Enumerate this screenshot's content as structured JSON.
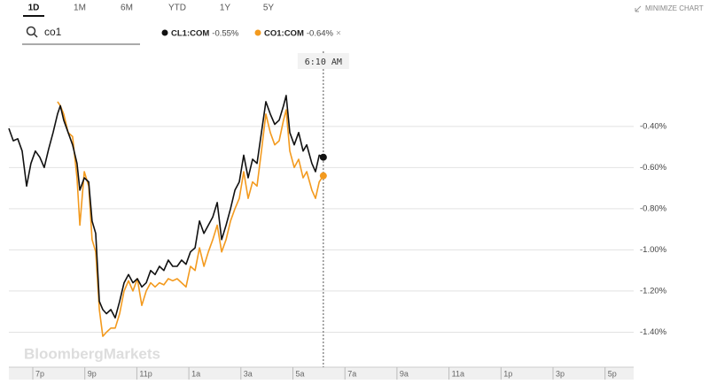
{
  "ui": {
    "tabs": [
      "1D",
      "1M",
      "6M",
      "YTD",
      "1Y",
      "5Y"
    ],
    "active_tab": 0,
    "minimize": "MINIMIZE CHART",
    "search": "co1",
    "remove": "×",
    "watermark": "BloombergMarkets"
  },
  "chart_data": {
    "type": "line",
    "x": [
      18.08,
      18.25,
      18.42,
      18.59,
      18.76,
      18.93,
      19.1,
      19.27,
      19.44,
      19.61,
      19.78,
      19.95,
      20.06,
      20.19,
      20.36,
      20.53,
      20.7,
      20.81,
      20.98,
      21.15,
      21.28,
      21.42,
      21.56,
      21.69,
      21.83,
      22.0,
      22.17,
      22.34,
      22.51,
      22.68,
      22.85,
      23.02,
      23.19,
      23.36,
      23.53,
      23.7,
      23.87,
      24.04,
      24.21,
      24.38,
      24.55,
      24.72,
      24.89,
      25.06,
      25.24,
      25.41,
      25.58,
      25.75,
      25.92,
      26.09,
      26.26,
      26.43,
      26.6,
      26.77,
      26.94,
      27.11,
      27.28,
      27.45,
      27.62,
      27.79,
      27.96,
      28.13,
      28.3,
      28.47,
      28.64,
      28.74,
      28.88,
      29.05,
      29.22,
      29.39,
      29.53,
      29.73,
      29.87,
      30.01,
      30.17
    ],
    "series": [
      {
        "name": "CL1:COM",
        "change": "-0.55%",
        "color": "#111111",
        "values": [
          -0.41,
          -0.47,
          -0.46,
          -0.52,
          -0.69,
          -0.58,
          -0.52,
          -0.55,
          -0.6,
          -0.51,
          -0.43,
          -0.34,
          -0.3,
          -0.37,
          -0.43,
          -0.49,
          -0.58,
          -0.71,
          -0.65,
          -0.67,
          -0.86,
          -0.92,
          -1.25,
          -1.29,
          -1.31,
          -1.29,
          -1.33,
          -1.25,
          -1.16,
          -1.12,
          -1.16,
          -1.14,
          -1.18,
          -1.16,
          -1.1,
          -1.12,
          -1.08,
          -1.1,
          -1.05,
          -1.08,
          -1.08,
          -1.05,
          -1.07,
          -1.01,
          -0.99,
          -0.86,
          -0.92,
          -0.88,
          -0.84,
          -0.77,
          -0.95,
          -0.88,
          -0.8,
          -0.71,
          -0.67,
          -0.54,
          -0.65,
          -0.56,
          -0.58,
          -0.43,
          -0.28,
          -0.34,
          -0.39,
          -0.37,
          -0.3,
          -0.25,
          -0.43,
          -0.49,
          -0.43,
          -0.52,
          -0.49,
          -0.58,
          -0.62,
          -0.54,
          -0.55
        ]
      },
      {
        "name": "CO1:COM",
        "change": "-0.64%",
        "color": "#f39a1e",
        "values": [
          null,
          null,
          null,
          null,
          null,
          null,
          null,
          null,
          null,
          null,
          null,
          -0.28,
          -0.3,
          -0.34,
          -0.43,
          -0.45,
          -0.65,
          -0.88,
          -0.62,
          -0.69,
          -0.95,
          -1.01,
          -1.29,
          -1.42,
          -1.4,
          -1.38,
          -1.38,
          -1.31,
          -1.2,
          -1.15,
          -1.2,
          -1.14,
          -1.27,
          -1.2,
          -1.16,
          -1.18,
          -1.16,
          -1.17,
          -1.14,
          -1.15,
          -1.14,
          -1.16,
          -1.18,
          -1.08,
          -1.1,
          -0.99,
          -1.08,
          -1.01,
          -0.95,
          -0.88,
          -1.01,
          -0.95,
          -0.86,
          -0.8,
          -0.75,
          -0.62,
          -0.75,
          -0.67,
          -0.69,
          -0.52,
          -0.34,
          -0.43,
          -0.49,
          -0.47,
          -0.37,
          -0.32,
          -0.52,
          -0.6,
          -0.56,
          -0.65,
          -0.62,
          -0.71,
          -0.75,
          -0.67,
          -0.64
        ]
      }
    ],
    "xlim": [
      18.08,
      42.1
    ],
    "xticks": [
      {
        "value": 19,
        "label": "7p"
      },
      {
        "value": 21,
        "label": "9p"
      },
      {
        "value": 23,
        "label": "11p"
      },
      {
        "value": 25,
        "label": "1a"
      },
      {
        "value": 27,
        "label": "3a"
      },
      {
        "value": 29,
        "label": "5a"
      },
      {
        "value": 31,
        "label": "7a"
      },
      {
        "value": 33,
        "label": "9a"
      },
      {
        "value": 35,
        "label": "11a"
      },
      {
        "value": 37,
        "label": "1p"
      },
      {
        "value": 39,
        "label": "3p"
      },
      {
        "value": 41,
        "label": "5p"
      }
    ],
    "ylim": [
      -1.57,
      -0.13
    ],
    "yticks": [
      {
        "value": -0.4,
        "label": "-0.40%"
      },
      {
        "value": -0.6,
        "label": "-0.60%"
      },
      {
        "value": -0.8,
        "label": "-0.80%"
      },
      {
        "value": -1.0,
        "label": "-1.00%"
      },
      {
        "value": -1.2,
        "label": "-1.20%"
      },
      {
        "value": -1.4,
        "label": "-1.40%"
      }
    ],
    "grid": true,
    "crosshair": {
      "x": 30.17,
      "label": "6:10 AM"
    }
  }
}
